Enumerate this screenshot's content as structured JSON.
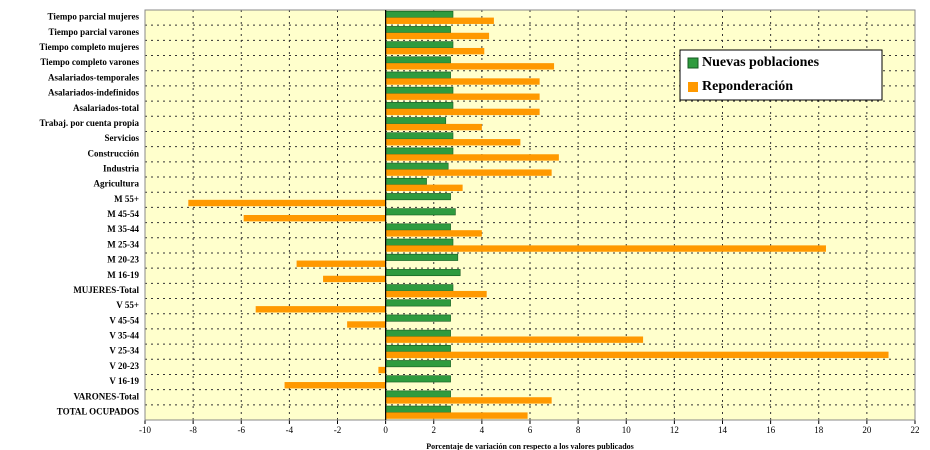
{
  "chart_data": {
    "type": "hbar",
    "x_label": "Porcentaje de variación con respecto a los valores publicados",
    "categories": [
      "Tiempo parcial mujeres",
      "Tiempo parcial varones",
      "Tiempo completo mujeres",
      "Tiempo completo varones",
      "Asalariados-temporales",
      "Asalariados-indefinidos",
      "Asalariados-total",
      "Trabaj. por cuenta propia",
      "Servicios",
      "Construcción",
      "Industria",
      "Agricultura",
      "M 55+",
      "M 45-54",
      "M 35-44",
      "M 25-34",
      "M 20-23",
      "M 16-19",
      "MUJERES-Total",
      "V 55+",
      "V 45-54",
      "V 35-44",
      "V 25-34",
      "V 20-23",
      "V 16-19",
      "VARONES-Total",
      "TOTAL OCUPADOS"
    ],
    "series": [
      {
        "name": "Nuevas poblaciones",
        "color": "#2e9b3e",
        "values": [
          2.8,
          2.7,
          2.8,
          2.7,
          2.7,
          2.8,
          2.8,
          2.5,
          2.8,
          2.8,
          2.6,
          1.7,
          2.7,
          2.9,
          2.7,
          2.8,
          3.0,
          3.1,
          2.8,
          2.7,
          2.7,
          2.7,
          2.7,
          2.7,
          2.7,
          2.7,
          2.7
        ]
      },
      {
        "name": "Reponderación",
        "color": "#ff9900",
        "values": [
          4.5,
          4.3,
          4.1,
          7.0,
          6.4,
          6.4,
          6.4,
          4.0,
          5.6,
          7.2,
          6.9,
          3.2,
          -8.2,
          -5.9,
          4.0,
          18.3,
          -3.7,
          -2.6,
          4.2,
          -5.4,
          -1.6,
          10.7,
          20.9,
          -0.3,
          -4.2,
          6.9,
          5.9
        ]
      }
    ],
    "xlim": [
      -10,
      22
    ],
    "xticks": [
      -10,
      -8,
      -6,
      -4,
      -2,
      0,
      2,
      4,
      6,
      8,
      10,
      12,
      14,
      16,
      18,
      20,
      22
    ],
    "grid": true,
    "legend": "upper right"
  }
}
